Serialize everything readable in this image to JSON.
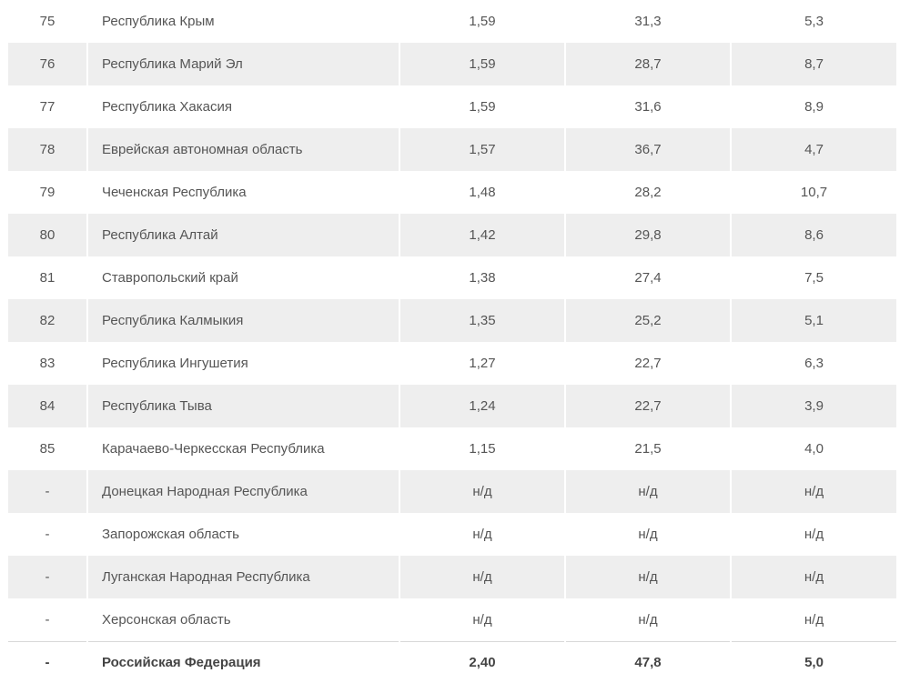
{
  "table": {
    "rows": [
      {
        "rank": "75",
        "name": "Республика Крым",
        "v1": "1,59",
        "v2": "31,3",
        "v3": "5,3"
      },
      {
        "rank": "76",
        "name": "Республика Марий Эл",
        "v1": "1,59",
        "v2": "28,7",
        "v3": "8,7"
      },
      {
        "rank": "77",
        "name": "Республика Хакасия",
        "v1": "1,59",
        "v2": "31,6",
        "v3": "8,9"
      },
      {
        "rank": "78",
        "name": "Еврейская автономная область",
        "v1": "1,57",
        "v2": "36,7",
        "v3": "4,7"
      },
      {
        "rank": "79",
        "name": "Чеченская Республика",
        "v1": "1,48",
        "v2": "28,2",
        "v3": "10,7"
      },
      {
        "rank": "80",
        "name": "Республика Алтай",
        "v1": "1,42",
        "v2": "29,8",
        "v3": "8,6"
      },
      {
        "rank": "81",
        "name": "Ставропольский край",
        "v1": "1,38",
        "v2": "27,4",
        "v3": "7,5"
      },
      {
        "rank": "82",
        "name": "Республика Калмыкия",
        "v1": "1,35",
        "v2": "25,2",
        "v3": "5,1"
      },
      {
        "rank": "83",
        "name": "Республика Ингушетия",
        "v1": "1,27",
        "v2": "22,7",
        "v3": "6,3"
      },
      {
        "rank": "84",
        "name": "Республика Тыва",
        "v1": "1,24",
        "v2": "22,7",
        "v3": "3,9"
      },
      {
        "rank": "85",
        "name": "Карачаево-Черкесская Республика",
        "v1": "1,15",
        "v2": "21,5",
        "v3": "4,0"
      },
      {
        "rank": "-",
        "name": "Донецкая Народная Республика",
        "v1": "н/д",
        "v2": "н/д",
        "v3": "н/д"
      },
      {
        "rank": "-",
        "name": "Запорожская область",
        "v1": "н/д",
        "v2": "н/д",
        "v3": "н/д"
      },
      {
        "rank": "-",
        "name": "Луганская Народная Республика",
        "v1": "н/д",
        "v2": "н/д",
        "v3": "н/д"
      },
      {
        "rank": "-",
        "name": "Херсонская область",
        "v1": "н/д",
        "v2": "н/д",
        "v3": "н/д"
      }
    ],
    "total": {
      "rank": "-",
      "name": "Российская Федерация",
      "v1": "2,40",
      "v2": "47,8",
      "v3": "5,0"
    }
  }
}
